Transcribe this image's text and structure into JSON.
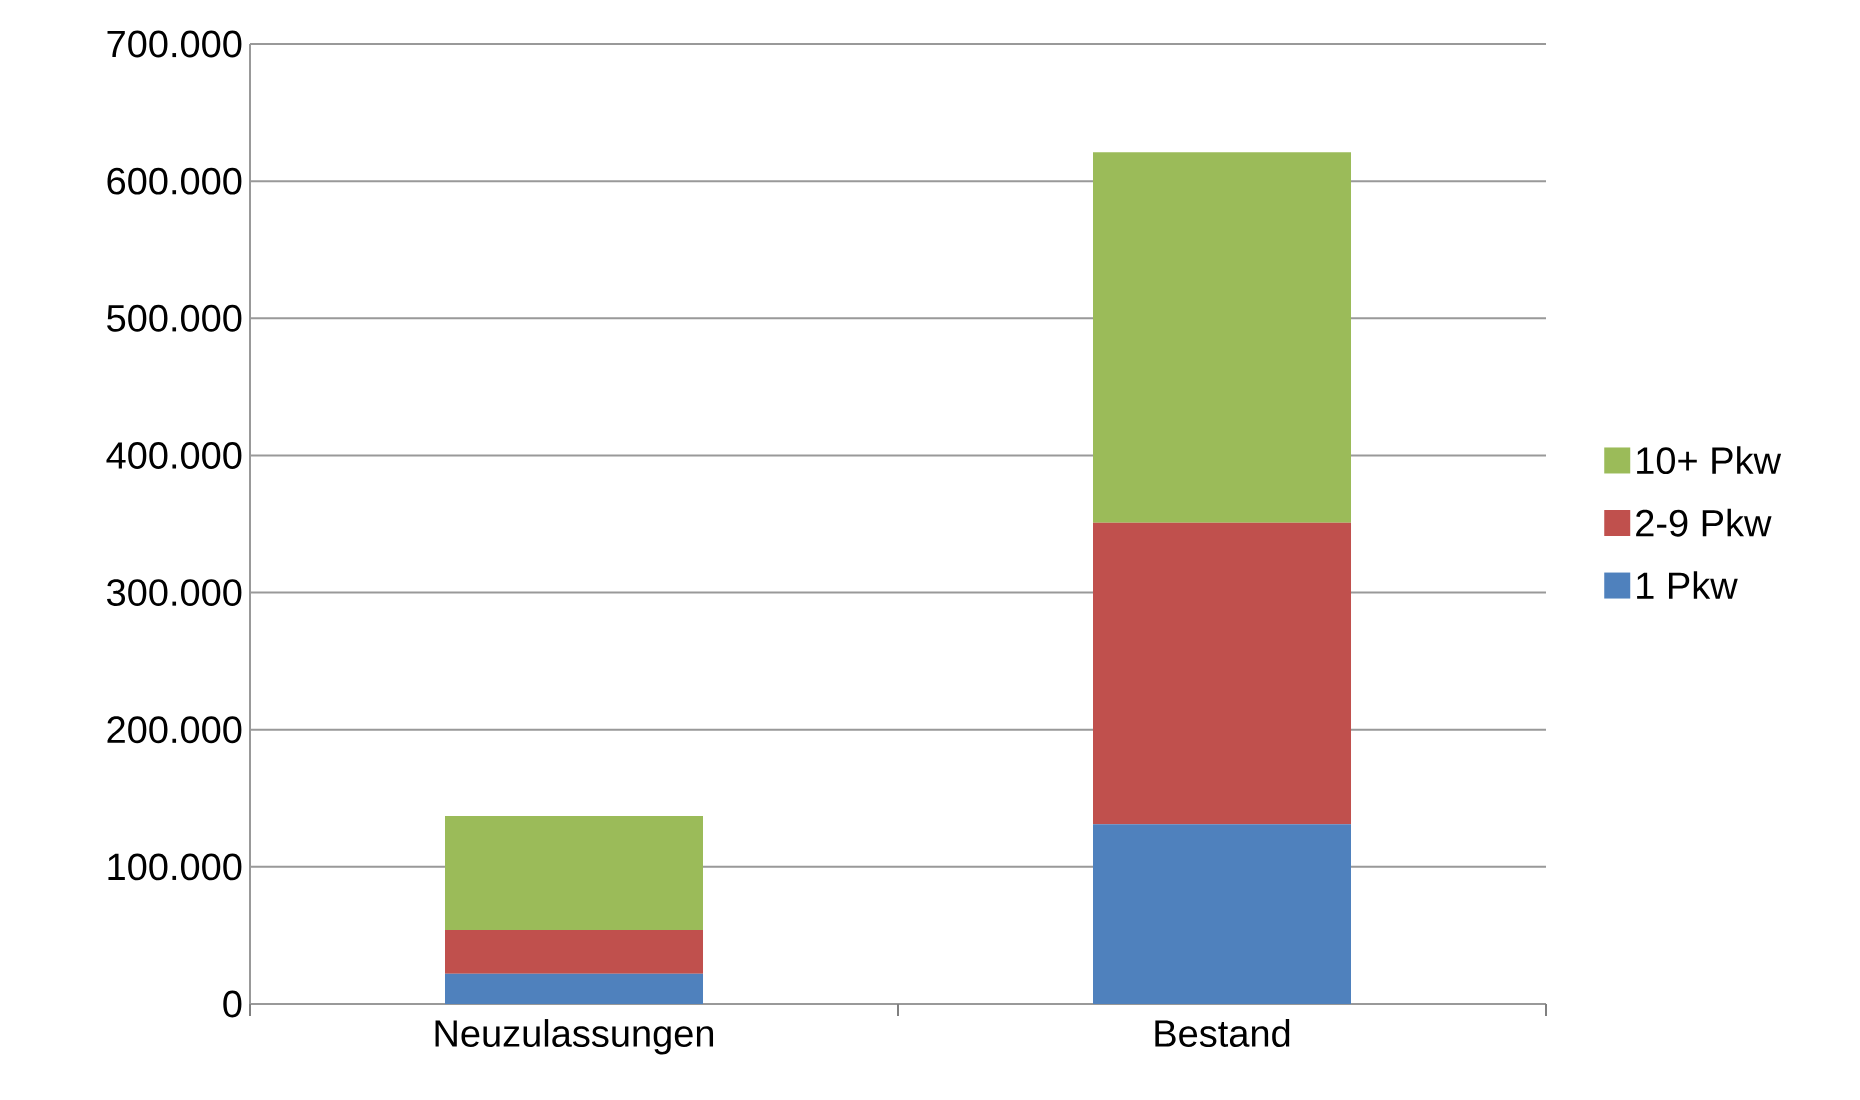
{
  "chart_data": {
    "type": "bar",
    "stacked": true,
    "categories": [
      "Neuzulassungen",
      "Bestand"
    ],
    "series": [
      {
        "name": "1 Pkw",
        "color": "#4f81bd",
        "values": [
          22000,
          131000
        ]
      },
      {
        "name": "2-9 Pkw",
        "color": "#c0504d",
        "values": [
          32000,
          220000
        ]
      },
      {
        "name": "10+ Pkw",
        "color": "#9bbb59",
        "values": [
          83000,
          270000
        ]
      }
    ],
    "ylim": [
      0,
      700000
    ],
    "yticks": [
      {
        "value": 0,
        "label": "0"
      },
      {
        "value": 100000,
        "label": "100.000"
      },
      {
        "value": 200000,
        "label": "200.000"
      },
      {
        "value": 300000,
        "label": "300.000"
      },
      {
        "value": 400000,
        "label": "400.000"
      },
      {
        "value": 500000,
        "label": "500.000"
      },
      {
        "value": 600000,
        "label": "600.000"
      },
      {
        "value": 700000,
        "label": "700.000"
      }
    ],
    "grid": "y",
    "legend": "right"
  }
}
